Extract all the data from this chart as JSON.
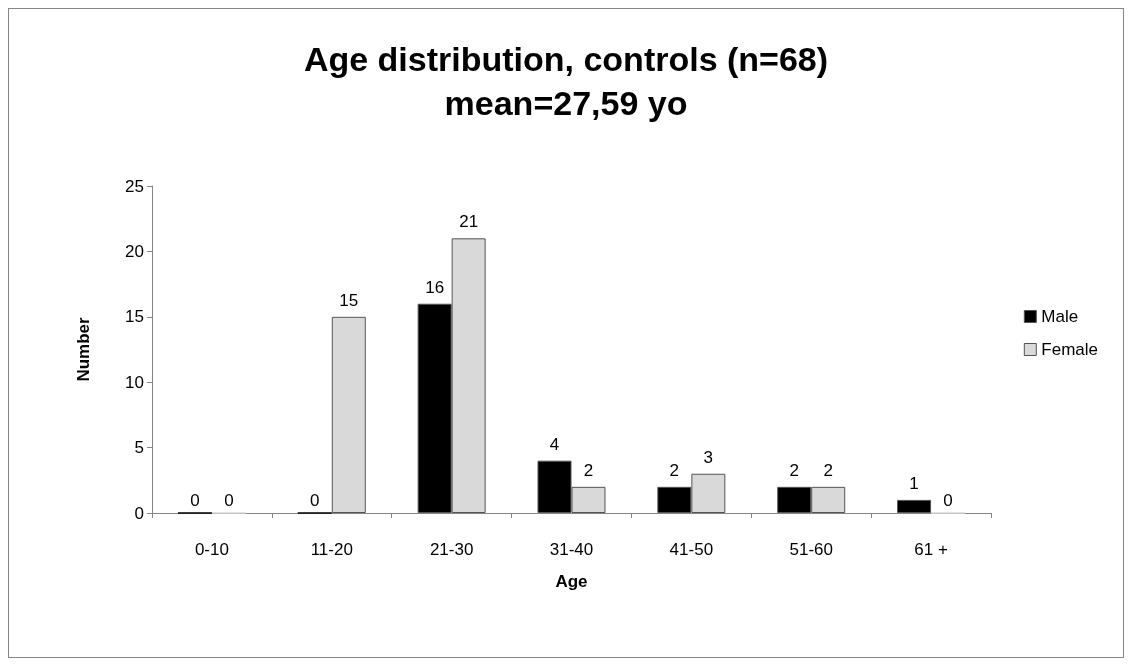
{
  "chart_data": {
    "type": "bar",
    "title": "Age distribution, controls (n=68)",
    "subtitle": "mean=27,59 yo",
    "xlabel": "Age",
    "ylabel": "Number",
    "categories": [
      "0-10",
      "11-20",
      "21-30",
      "31-40",
      "41-50",
      "51-60",
      "61 +"
    ],
    "series": [
      {
        "name": "Male",
        "color": "#000000",
        "values": [
          0,
          0,
          16,
          4,
          2,
          2,
          1
        ]
      },
      {
        "name": "Female",
        "color": "#d9d9d9",
        "values": [
          0,
          15,
          21,
          2,
          3,
          2,
          0
        ]
      }
    ],
    "ylim": [
      0,
      25
    ],
    "yticks": [
      0,
      5,
      10,
      15,
      20,
      25
    ],
    "grid": false,
    "legend": "right",
    "data_labels": true
  }
}
